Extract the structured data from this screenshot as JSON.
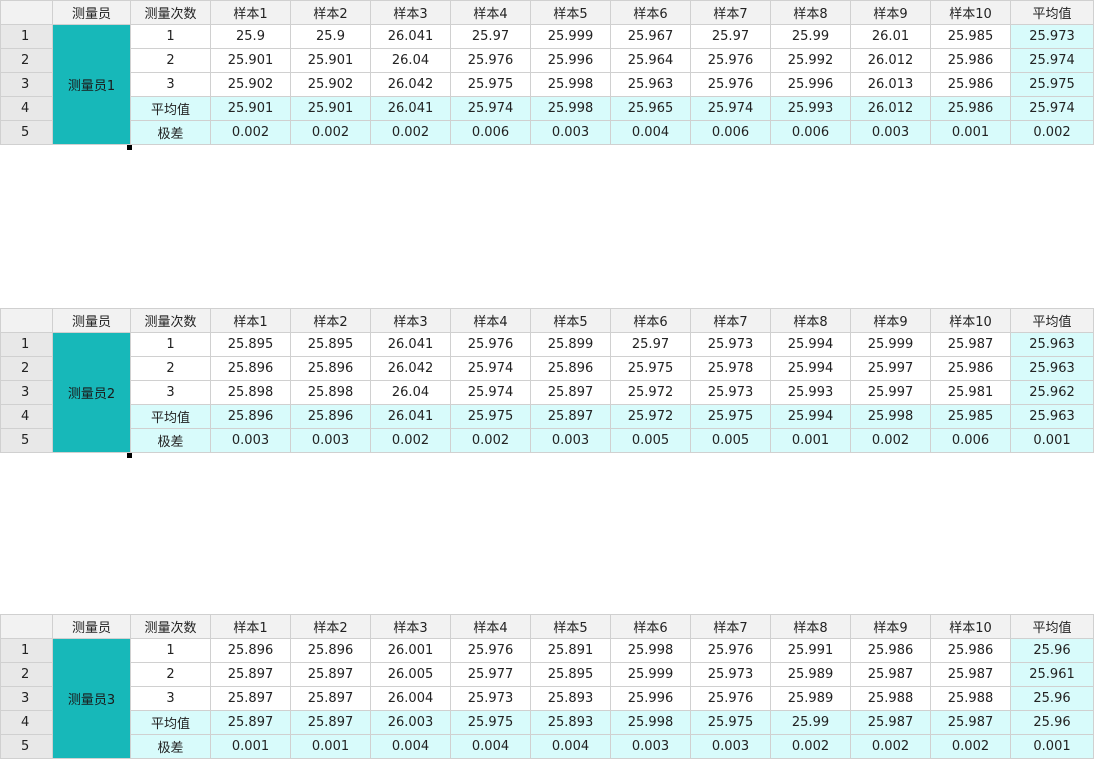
{
  "headers": [
    "测量员",
    "测量次数",
    "样本1",
    "样本2",
    "样本3",
    "样本4",
    "样本5",
    "样本6",
    "样本7",
    "样本8",
    "样本9",
    "样本10",
    "平均值"
  ],
  "blocks": [
    {
      "operator": "测量员1",
      "rows": [
        {
          "num": "1",
          "trial": "1",
          "values": [
            "25.9",
            "25.9",
            "26.041",
            "25.97",
            "25.999",
            "25.967",
            "25.97",
            "25.99",
            "26.01",
            "25.985"
          ],
          "avg": "25.973"
        },
        {
          "num": "2",
          "trial": "2",
          "values": [
            "25.901",
            "25.901",
            "26.04",
            "25.976",
            "25.996",
            "25.964",
            "25.976",
            "25.992",
            "26.012",
            "25.986"
          ],
          "avg": "25.974"
        },
        {
          "num": "3",
          "trial": "3",
          "values": [
            "25.902",
            "25.902",
            "26.042",
            "25.975",
            "25.998",
            "25.963",
            "25.976",
            "25.996",
            "26.013",
            "25.986"
          ],
          "avg": "25.975"
        },
        {
          "num": "4",
          "trial": "平均值",
          "values": [
            "25.901",
            "25.901",
            "26.041",
            "25.974",
            "25.998",
            "25.965",
            "25.974",
            "25.993",
            "26.012",
            "25.986"
          ],
          "avg": "25.974"
        },
        {
          "num": "5",
          "trial": "极差",
          "values": [
            "0.002",
            "0.002",
            "0.002",
            "0.006",
            "0.003",
            "0.004",
            "0.006",
            "0.006",
            "0.003",
            "0.001"
          ],
          "avg": "0.002"
        }
      ]
    },
    {
      "operator": "测量员2",
      "rows": [
        {
          "num": "1",
          "trial": "1",
          "values": [
            "25.895",
            "25.895",
            "26.041",
            "25.976",
            "25.899",
            "25.97",
            "25.973",
            "25.994",
            "25.999",
            "25.987"
          ],
          "avg": "25.963"
        },
        {
          "num": "2",
          "trial": "2",
          "values": [
            "25.896",
            "25.896",
            "26.042",
            "25.974",
            "25.896",
            "25.975",
            "25.978",
            "25.994",
            "25.997",
            "25.986"
          ],
          "avg": "25.963"
        },
        {
          "num": "3",
          "trial": "3",
          "values": [
            "25.898",
            "25.898",
            "26.04",
            "25.974",
            "25.897",
            "25.972",
            "25.973",
            "25.993",
            "25.997",
            "25.981"
          ],
          "avg": "25.962"
        },
        {
          "num": "4",
          "trial": "平均值",
          "values": [
            "25.896",
            "25.896",
            "26.041",
            "25.975",
            "25.897",
            "25.972",
            "25.975",
            "25.994",
            "25.998",
            "25.985"
          ],
          "avg": "25.963"
        },
        {
          "num": "5",
          "trial": "极差",
          "values": [
            "0.003",
            "0.003",
            "0.002",
            "0.002",
            "0.003",
            "0.005",
            "0.005",
            "0.001",
            "0.002",
            "0.006"
          ],
          "avg": "0.001"
        }
      ]
    },
    {
      "operator": "测量员3",
      "rows": [
        {
          "num": "1",
          "trial": "1",
          "values": [
            "25.896",
            "25.896",
            "26.001",
            "25.976",
            "25.891",
            "25.998",
            "25.976",
            "25.991",
            "25.986",
            "25.986"
          ],
          "avg": "25.96"
        },
        {
          "num": "2",
          "trial": "2",
          "values": [
            "25.897",
            "25.897",
            "26.005",
            "25.977",
            "25.895",
            "25.999",
            "25.973",
            "25.989",
            "25.987",
            "25.987"
          ],
          "avg": "25.961"
        },
        {
          "num": "3",
          "trial": "3",
          "values": [
            "25.897",
            "25.897",
            "26.004",
            "25.973",
            "25.893",
            "25.996",
            "25.976",
            "25.989",
            "25.988",
            "25.988"
          ],
          "avg": "25.96"
        },
        {
          "num": "4",
          "trial": "平均值",
          "values": [
            "25.897",
            "25.897",
            "26.003",
            "25.975",
            "25.893",
            "25.998",
            "25.975",
            "25.99",
            "25.987",
            "25.987"
          ],
          "avg": "25.96"
        },
        {
          "num": "5",
          "trial": "极差",
          "values": [
            "0.001",
            "0.001",
            "0.004",
            "0.004",
            "0.004",
            "0.003",
            "0.003",
            "0.002",
            "0.002",
            "0.002"
          ],
          "avg": "0.001"
        }
      ]
    }
  ]
}
